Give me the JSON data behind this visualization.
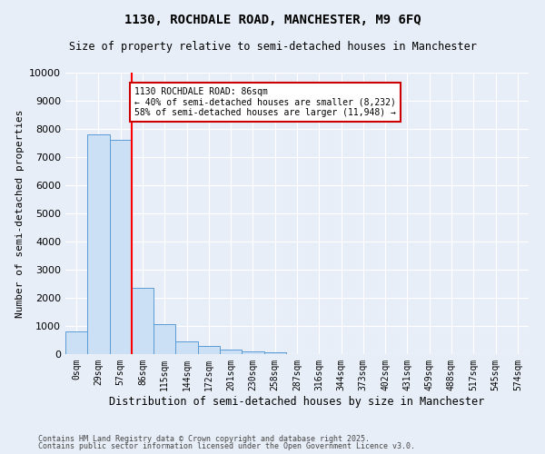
{
  "title": "1130, ROCHDALE ROAD, MANCHESTER, M9 6FQ",
  "subtitle": "Size of property relative to semi-detached houses in Manchester",
  "xlabel": "Distribution of semi-detached houses by size in Manchester",
  "ylabel": "Number of semi-detached properties",
  "footer1": "Contains HM Land Registry data © Crown copyright and database right 2025.",
  "footer2": "Contains public sector information licensed under the Open Government Licence v3.0.",
  "bar_labels": [
    "0sqm",
    "29sqm",
    "57sqm",
    "86sqm",
    "115sqm",
    "144sqm",
    "172sqm",
    "201sqm",
    "230sqm",
    "258sqm",
    "287sqm",
    "316sqm",
    "344sqm",
    "373sqm",
    "402sqm",
    "431sqm",
    "459sqm",
    "488sqm",
    "517sqm",
    "545sqm",
    "574sqm"
  ],
  "bar_values": [
    800,
    7800,
    7600,
    2350,
    1050,
    450,
    280,
    160,
    110,
    60,
    0,
    0,
    0,
    0,
    0,
    0,
    0,
    0,
    0,
    0,
    0
  ],
  "bar_color": "#cce0f5",
  "bar_edge_color": "#5b9bd5",
  "ylim": [
    0,
    10000
  ],
  "yticks": [
    0,
    1000,
    2000,
    3000,
    4000,
    5000,
    6000,
    7000,
    8000,
    9000,
    10000
  ],
  "property_line_x": 3.0,
  "pct_smaller": 40,
  "count_smaller": 8232,
  "pct_larger": 58,
  "count_larger": 11948,
  "annotation_label": "1130 ROCHDALE ROAD: 86sqm",
  "bg_color": "#e8eef7",
  "grid_color": "#ffffff",
  "annotation_box_color": "#ffffff",
  "annotation_box_edge": "#cc0000"
}
